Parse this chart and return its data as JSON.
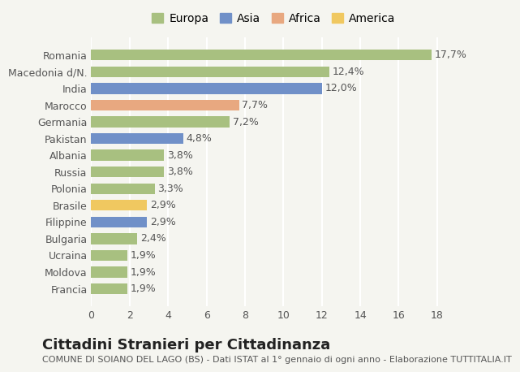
{
  "categories": [
    "Romania",
    "Macedonia d/N.",
    "India",
    "Marocco",
    "Germania",
    "Pakistan",
    "Albania",
    "Russia",
    "Polonia",
    "Brasile",
    "Filippine",
    "Bulgaria",
    "Ucraina",
    "Moldova",
    "Francia"
  ],
  "values": [
    17.7,
    12.4,
    12.0,
    7.7,
    7.2,
    4.8,
    3.8,
    3.8,
    3.3,
    2.9,
    2.9,
    2.4,
    1.9,
    1.9,
    1.9
  ],
  "labels": [
    "17,7%",
    "12,4%",
    "12,0%",
    "7,7%",
    "7,2%",
    "4,8%",
    "3,8%",
    "3,8%",
    "3,3%",
    "2,9%",
    "2,9%",
    "2,4%",
    "1,9%",
    "1,9%",
    "1,9%"
  ],
  "continents": [
    "Europa",
    "Europa",
    "Asia",
    "Africa",
    "Europa",
    "Asia",
    "Europa",
    "Europa",
    "Europa",
    "America",
    "Asia",
    "Europa",
    "Europa",
    "Europa",
    "Europa"
  ],
  "continent_colors": {
    "Europa": "#a8c080",
    "Asia": "#7090c8",
    "Africa": "#e8a880",
    "America": "#f0c860"
  },
  "legend_order": [
    "Europa",
    "Asia",
    "Africa",
    "America"
  ],
  "title": "Cittadini Stranieri per Cittadinanza",
  "subtitle": "COMUNE DI SOIANO DEL LAGO (BS) - Dati ISTAT al 1° gennaio di ogni anno - Elaborazione TUTTITALIA.IT",
  "xlim": [
    0,
    19
  ],
  "xticks": [
    0,
    2,
    4,
    6,
    8,
    10,
    12,
    14,
    16,
    18
  ],
  "bg_color": "#f5f5f0",
  "grid_color": "#ffffff",
  "bar_height": 0.65,
  "title_fontsize": 13,
  "subtitle_fontsize": 8,
  "label_fontsize": 9,
  "tick_fontsize": 9,
  "legend_fontsize": 10
}
